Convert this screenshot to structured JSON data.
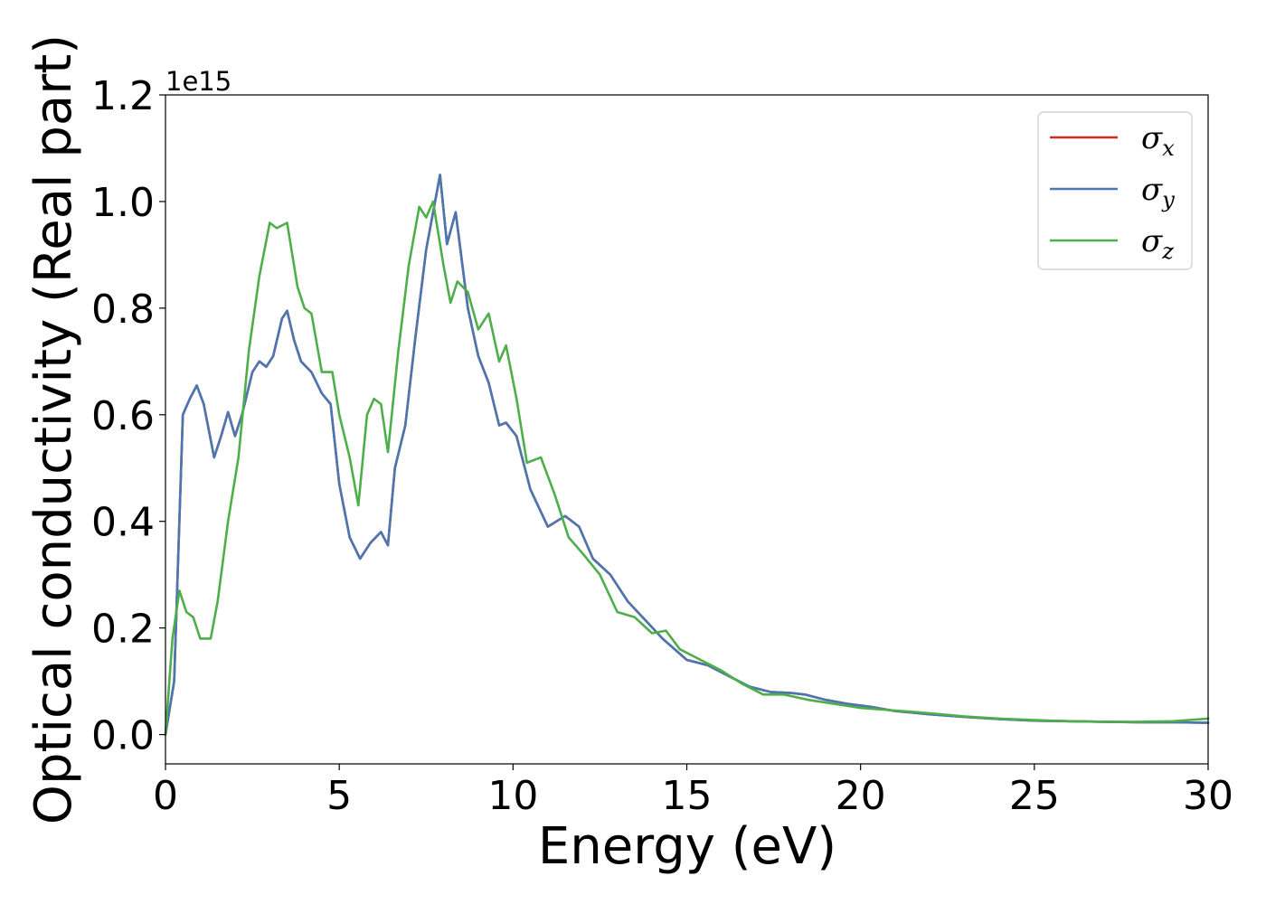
{
  "chart_data": {
    "type": "line",
    "title": "",
    "xlabel": "Energy (eV)",
    "ylabel": "Optical conductivity (Real part)",
    "y_offset_text": "1e15",
    "xlim": [
      0,
      30
    ],
    "ylim": [
      -0.055,
      1.2
    ],
    "x_ticks": [
      0,
      5,
      10,
      15,
      20,
      25,
      30
    ],
    "x_tick_labels": [
      "0",
      "5",
      "10",
      "15",
      "20",
      "25",
      "30"
    ],
    "y_ticks": [
      0.0,
      0.2,
      0.4,
      0.6,
      0.8,
      1.0,
      1.2
    ],
    "y_tick_labels": [
      "0.0",
      "0.2",
      "0.4",
      "0.6",
      "0.8",
      "1.0",
      "1.2"
    ],
    "grid": false,
    "legend_position": "top-right",
    "series": [
      {
        "name": "σx",
        "legend_base": "σ",
        "legend_sub": "x",
        "color": "#d62728",
        "x": [
          0,
          0.25,
          0.5,
          0.7,
          0.9,
          1.1,
          1.4,
          1.6,
          1.8,
          2.0,
          2.2,
          2.5,
          2.7,
          2.9,
          3.1,
          3.35,
          3.5,
          3.7,
          3.9,
          4.2,
          4.5,
          4.75,
          5.0,
          5.3,
          5.6,
          5.9,
          6.2,
          6.4,
          6.6,
          6.9,
          7.2,
          7.5,
          7.9,
          8.1,
          8.35,
          8.7,
          9.0,
          9.3,
          9.6,
          9.8,
          10.1,
          10.5,
          11.0,
          11.5,
          11.9,
          12.3,
          12.8,
          13.3,
          13.8,
          14.3,
          15.0,
          15.6,
          16.2,
          16.8,
          17.4,
          18.0,
          18.4,
          19.0,
          19.6,
          20.3,
          21.0,
          22.0,
          23.0,
          24.0,
          25.0,
          26.0,
          27.0,
          28.0,
          29.0,
          30.0
        ],
        "y": [
          0.0,
          0.1,
          0.6,
          0.63,
          0.655,
          0.62,
          0.52,
          0.56,
          0.605,
          0.56,
          0.6,
          0.68,
          0.7,
          0.69,
          0.71,
          0.78,
          0.795,
          0.74,
          0.7,
          0.68,
          0.64,
          0.62,
          0.47,
          0.37,
          0.33,
          0.36,
          0.38,
          0.355,
          0.5,
          0.58,
          0.75,
          0.91,
          1.05,
          0.92,
          0.98,
          0.8,
          0.71,
          0.66,
          0.58,
          0.585,
          0.56,
          0.46,
          0.39,
          0.41,
          0.39,
          0.33,
          0.3,
          0.25,
          0.215,
          0.18,
          0.14,
          0.13,
          0.11,
          0.09,
          0.08,
          0.078,
          0.075,
          0.065,
          0.058,
          0.052,
          0.044,
          0.038,
          0.033,
          0.029,
          0.026,
          0.025,
          0.024,
          0.023,
          0.023,
          0.022
        ]
      },
      {
        "name": "σy",
        "legend_base": "σ",
        "legend_sub": "y",
        "color": "#4a77b0",
        "x": [
          0,
          0.25,
          0.5,
          0.7,
          0.9,
          1.1,
          1.4,
          1.6,
          1.8,
          2.0,
          2.2,
          2.5,
          2.7,
          2.9,
          3.1,
          3.35,
          3.5,
          3.7,
          3.9,
          4.2,
          4.5,
          4.75,
          5.0,
          5.3,
          5.6,
          5.9,
          6.2,
          6.4,
          6.6,
          6.9,
          7.2,
          7.5,
          7.9,
          8.1,
          8.35,
          8.7,
          9.0,
          9.3,
          9.6,
          9.8,
          10.1,
          10.5,
          11.0,
          11.5,
          11.9,
          12.3,
          12.8,
          13.3,
          13.8,
          14.3,
          15.0,
          15.6,
          16.2,
          16.8,
          17.4,
          18.0,
          18.4,
          19.0,
          19.6,
          20.3,
          21.0,
          22.0,
          23.0,
          24.0,
          25.0,
          26.0,
          27.0,
          28.0,
          29.0,
          30.0
        ],
        "y": [
          0.0,
          0.1,
          0.6,
          0.63,
          0.655,
          0.62,
          0.52,
          0.56,
          0.605,
          0.56,
          0.6,
          0.68,
          0.7,
          0.69,
          0.71,
          0.78,
          0.795,
          0.74,
          0.7,
          0.68,
          0.64,
          0.62,
          0.47,
          0.37,
          0.33,
          0.36,
          0.38,
          0.355,
          0.5,
          0.58,
          0.75,
          0.91,
          1.05,
          0.92,
          0.98,
          0.8,
          0.71,
          0.66,
          0.58,
          0.585,
          0.56,
          0.46,
          0.39,
          0.41,
          0.39,
          0.33,
          0.3,
          0.25,
          0.215,
          0.18,
          0.14,
          0.13,
          0.11,
          0.09,
          0.08,
          0.078,
          0.075,
          0.065,
          0.058,
          0.052,
          0.044,
          0.038,
          0.033,
          0.029,
          0.026,
          0.025,
          0.024,
          0.023,
          0.023,
          0.022
        ]
      },
      {
        "name": "σz",
        "legend_base": "σ",
        "legend_sub": "z",
        "color": "#4daf4a",
        "x": [
          0,
          0.2,
          0.4,
          0.6,
          0.8,
          1.0,
          1.3,
          1.5,
          1.8,
          2.1,
          2.4,
          2.7,
          3.0,
          3.2,
          3.5,
          3.8,
          4.0,
          4.2,
          4.5,
          4.8,
          5.0,
          5.3,
          5.55,
          5.8,
          6.0,
          6.2,
          6.4,
          6.7,
          7.0,
          7.3,
          7.5,
          7.7,
          8.0,
          8.2,
          8.4,
          8.7,
          9.0,
          9.3,
          9.6,
          9.8,
          10.1,
          10.4,
          10.8,
          11.2,
          11.6,
          12.0,
          12.5,
          13.0,
          13.5,
          14.0,
          14.4,
          14.8,
          15.4,
          16.0,
          16.6,
          17.2,
          17.8,
          18.5,
          19.2,
          20.0,
          21.0,
          22.0,
          23.0,
          24.0,
          25.0,
          26.0,
          27.0,
          28.0,
          29.0,
          30.0
        ],
        "y": [
          0.0,
          0.18,
          0.27,
          0.23,
          0.22,
          0.18,
          0.18,
          0.25,
          0.4,
          0.52,
          0.72,
          0.86,
          0.96,
          0.95,
          0.96,
          0.84,
          0.8,
          0.79,
          0.68,
          0.68,
          0.6,
          0.52,
          0.43,
          0.6,
          0.63,
          0.62,
          0.53,
          0.72,
          0.88,
          0.99,
          0.97,
          1.0,
          0.88,
          0.81,
          0.85,
          0.83,
          0.76,
          0.79,
          0.7,
          0.73,
          0.63,
          0.51,
          0.52,
          0.45,
          0.37,
          0.34,
          0.3,
          0.23,
          0.22,
          0.19,
          0.195,
          0.16,
          0.14,
          0.12,
          0.095,
          0.075,
          0.075,
          0.065,
          0.058,
          0.05,
          0.045,
          0.04,
          0.034,
          0.03,
          0.027,
          0.025,
          0.024,
          0.024,
          0.025,
          0.03
        ]
      }
    ]
  }
}
